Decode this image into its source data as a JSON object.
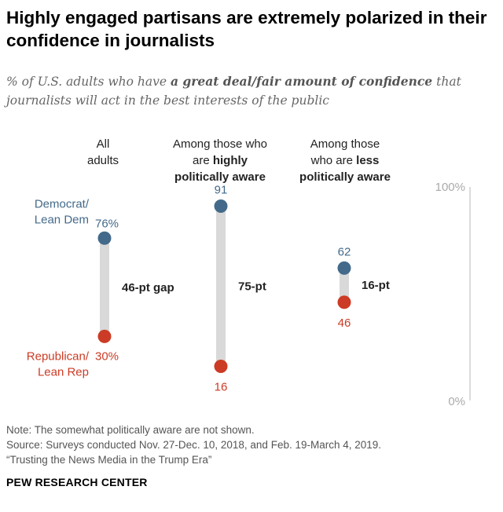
{
  "header": {
    "title": "Highly engaged partisans are extremely polarized in their confidence in journalists",
    "subtitle_prefix": "% of U.S. adults who have ",
    "subtitle_bold": "a great deal/fair amount of confidence",
    "subtitle_suffix": " that journalists will act in the best interests of the public"
  },
  "columns": [
    {
      "line1": "All",
      "line2": "adults",
      "line2_bold": ""
    },
    {
      "line1": "Among those who",
      "line2": "are ",
      "line2_bold": "highly",
      "line3_bold": "politically aware"
    },
    {
      "line1": "Among those",
      "line2": "who are ",
      "line2_bold": "less",
      "line3_bold": "politically aware"
    }
  ],
  "chart_data": {
    "type": "dot",
    "ylim": [
      0,
      100
    ],
    "axis_labels": [
      "100%",
      "0%"
    ],
    "series_labels": {
      "democrat": [
        "Democrat/",
        "Lean Dem"
      ],
      "republican": [
        "Republican/",
        "Lean Rep"
      ]
    },
    "groups": [
      {
        "dem": 76,
        "rep": 30,
        "dem_label": "76%",
        "rep_label": "30%",
        "gap_label": "46-pt gap"
      },
      {
        "dem": 91,
        "rep": 16,
        "dem_label": "91",
        "rep_label": "16",
        "gap_label": "75-pt"
      },
      {
        "dem": 62,
        "rep": 46,
        "dem_label": "62",
        "rep_label": "46",
        "gap_label": "16-pt"
      }
    ],
    "colors": {
      "democrat": "#436a8a",
      "republican": "#cc3b25",
      "bar": "#d9d9d9",
      "axis": "#d0d0d0"
    }
  },
  "footer": {
    "note": "Note: The somewhat politically aware are not shown.",
    "source": "Source: Surveys conducted Nov. 27-Dec. 10, 2018, and Feb. 19-March 4, 2019.",
    "report": "“Trusting the News Media in the Trump Era”",
    "brand": "PEW RESEARCH CENTER"
  }
}
